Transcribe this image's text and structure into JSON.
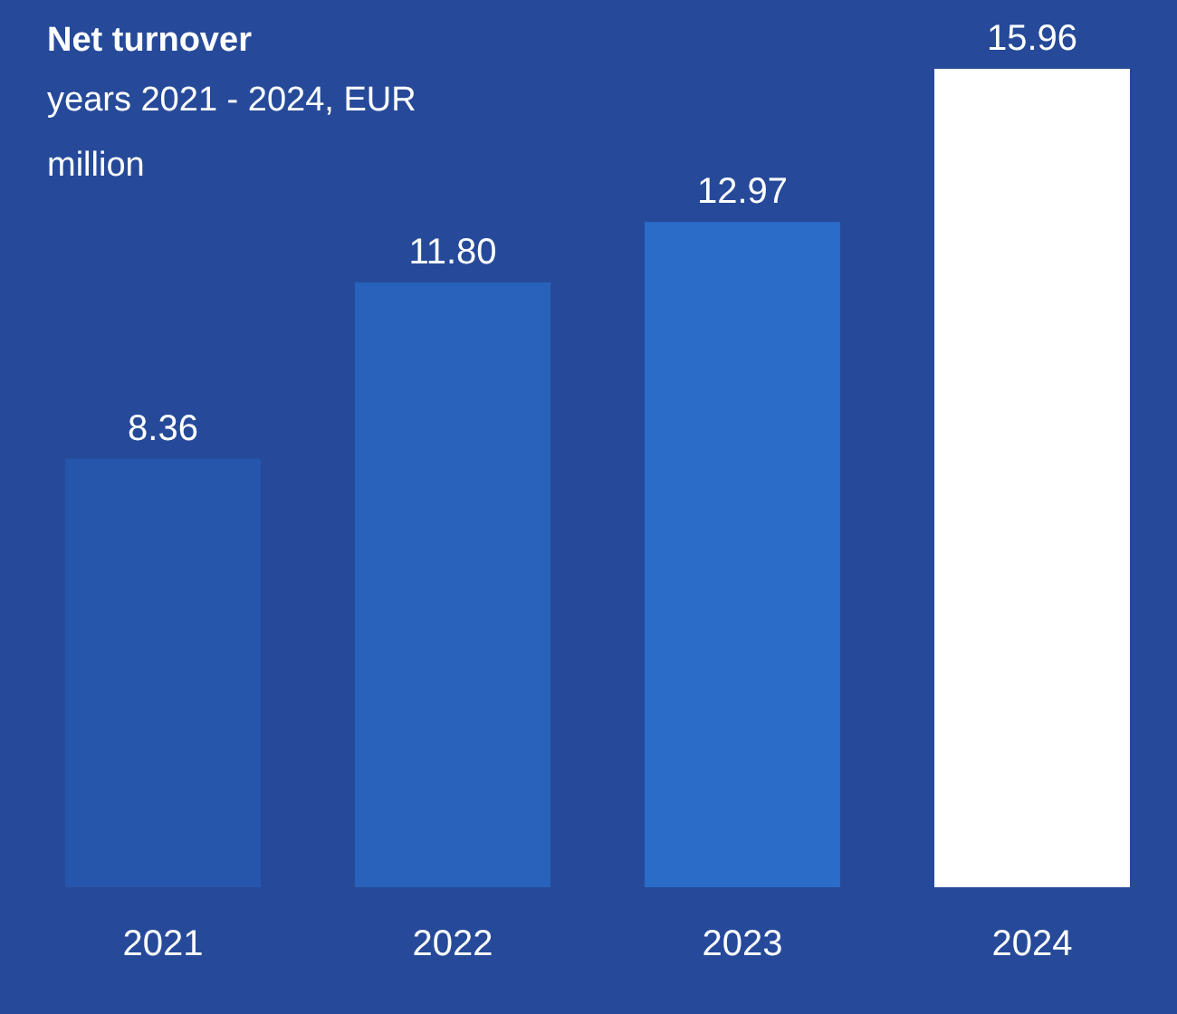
{
  "chart_data": {
    "type": "bar",
    "title": "Net turnover",
    "subtitle": "years 2021 - 2024, EUR million",
    "categories": [
      "2021",
      "2022",
      "2023",
      "2024"
    ],
    "values": [
      8.36,
      11.8,
      12.97,
      15.96
    ],
    "value_labels": [
      "8.36",
      "11.80",
      "12.97",
      "15.96"
    ],
    "colors": [
      "#2655ac",
      "#2862ba",
      "#2a6cc8",
      "#ffffff"
    ],
    "grid": false,
    "legend": false
  }
}
